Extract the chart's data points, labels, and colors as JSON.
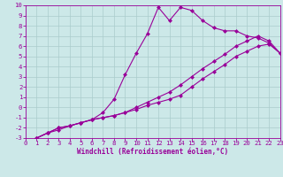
{
  "xlabel": "Windchill (Refroidissement éolien,°C)",
  "bg_color": "#cce8e8",
  "line_color": "#990099",
  "grid_color": "#aacccc",
  "xlim": [
    0,
    23
  ],
  "ylim": [
    -3,
    10
  ],
  "xticks": [
    0,
    1,
    2,
    3,
    4,
    5,
    6,
    7,
    8,
    9,
    10,
    11,
    12,
    13,
    14,
    15,
    16,
    17,
    18,
    19,
    20,
    21,
    22,
    23
  ],
  "yticks": [
    -3,
    -2,
    -1,
    0,
    1,
    2,
    3,
    4,
    5,
    6,
    7,
    8,
    9,
    10
  ],
  "line1_x": [
    1,
    2,
    3,
    4,
    5,
    6,
    7,
    8,
    9,
    10,
    11,
    12,
    13,
    14,
    15,
    16,
    17,
    18,
    19,
    20,
    21,
    22,
    23
  ],
  "line1_y": [
    -3,
    -2.5,
    -2.2,
    -1.8,
    -1.5,
    -1.2,
    -0.5,
    0.8,
    3.2,
    5.3,
    7.2,
    9.8,
    8.5,
    9.8,
    9.5,
    8.5,
    7.8,
    7.5,
    7.5,
    7.0,
    6.8,
    6.3,
    5.3
  ],
  "line2_x": [
    1,
    2,
    3,
    4,
    5,
    6,
    7,
    8,
    9,
    10,
    11,
    12,
    13,
    14,
    15,
    16,
    17,
    18,
    19,
    20,
    21,
    22,
    23
  ],
  "line2_y": [
    -3,
    -2.5,
    -2.0,
    -1.8,
    -1.5,
    -1.2,
    -1.0,
    -0.8,
    -0.5,
    -0.2,
    0.2,
    0.5,
    0.8,
    1.2,
    2.0,
    2.8,
    3.5,
    4.2,
    5.0,
    5.5,
    6.0,
    6.2,
    5.3
  ],
  "line3_x": [
    1,
    2,
    3,
    4,
    5,
    6,
    7,
    8,
    9,
    10,
    11,
    12,
    13,
    14,
    15,
    16,
    17,
    18,
    19,
    20,
    21,
    22,
    23
  ],
  "line3_y": [
    -3,
    -2.5,
    -2.0,
    -1.8,
    -1.5,
    -1.2,
    -1.0,
    -0.8,
    -0.5,
    0.0,
    0.5,
    1.0,
    1.5,
    2.2,
    3.0,
    3.8,
    4.5,
    5.2,
    6.0,
    6.5,
    7.0,
    6.5,
    5.3
  ],
  "title_fontsize": 6,
  "xlabel_fontsize": 5.5,
  "tick_fontsize": 5.2,
  "lw": 0.8,
  "ms": 2.5
}
